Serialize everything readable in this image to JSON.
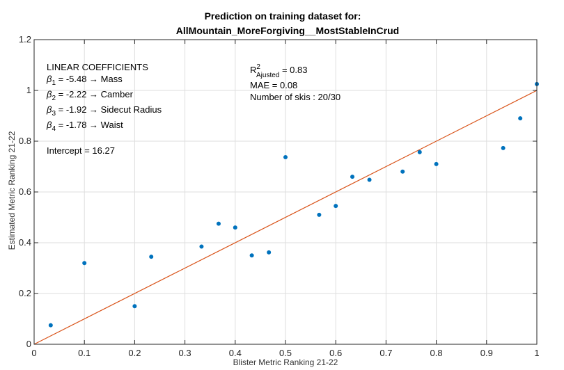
{
  "chart_data": {
    "type": "scatter",
    "title_lines": [
      "Prediction on training dataset for:",
      "AllMountain_MoreForgiving__MostStableInCrud"
    ],
    "xlabel": "Blister Metric Ranking 21-22",
    "ylabel": "Estimated Metric Ranking 21-22",
    "xlim": [
      0,
      1
    ],
    "ylim": [
      0,
      1.2
    ],
    "xticks": [
      0,
      0.1,
      0.2,
      0.3,
      0.4,
      0.5,
      0.6,
      0.7,
      0.8,
      0.9,
      1
    ],
    "xtick_labels": [
      "0",
      "0.1",
      "0.2",
      "0.3",
      "0.4",
      "0.5",
      "0.6",
      "0.7",
      "0.8",
      "0.9",
      "1"
    ],
    "yticks": [
      0,
      0.2,
      0.4,
      0.6,
      0.8,
      1,
      1.2
    ],
    "ytick_labels": [
      "0",
      "0.2",
      "0.4",
      "0.6",
      "0.8",
      "1",
      "1.2"
    ],
    "grid": true,
    "colors": {
      "points": "#0072BD",
      "fit_line": "#D95319",
      "grid": "#dedede",
      "axes": "#262626"
    },
    "series": [
      {
        "x": [
          0.033,
          0.1,
          0.2,
          0.233,
          0.333,
          0.367,
          0.4,
          0.433,
          0.467,
          0.5,
          0.567,
          0.6,
          0.633,
          0.667,
          0.733,
          0.767,
          0.8,
          0.933,
          0.967,
          1.0
        ],
        "y": [
          0.075,
          0.32,
          0.15,
          0.345,
          0.385,
          0.475,
          0.46,
          0.35,
          0.362,
          0.737,
          0.51,
          0.545,
          0.66,
          0.648,
          0.68,
          0.757,
          0.71,
          0.773,
          0.89,
          1.025
        ]
      }
    ],
    "reference_line": {
      "x": [
        0,
        1
      ],
      "y": [
        0,
        1
      ]
    },
    "annotations": {
      "coefficients_title": "LINEAR COEFFICIENTS",
      "coefficients": [
        {
          "symbol": "β",
          "sub": "1",
          "text": " = -5.48 → Mass"
        },
        {
          "symbol": "β",
          "sub": "2",
          "text": " = -2.22 → Camber"
        },
        {
          "symbol": "β",
          "sub": "3",
          "text": " = -1.92 → Sidecut Radius"
        },
        {
          "symbol": "β",
          "sub": "4",
          "text": " = -1.78 → Waist"
        }
      ],
      "intercept": "Intercept = 16.27",
      "r2": {
        "symbol": "R",
        "sup": "2",
        "sub": "Ajusted",
        "text": " = 0.83"
      },
      "mae": "MAE = 0.08",
      "n_skis": "Number of skis : 20/30"
    }
  }
}
